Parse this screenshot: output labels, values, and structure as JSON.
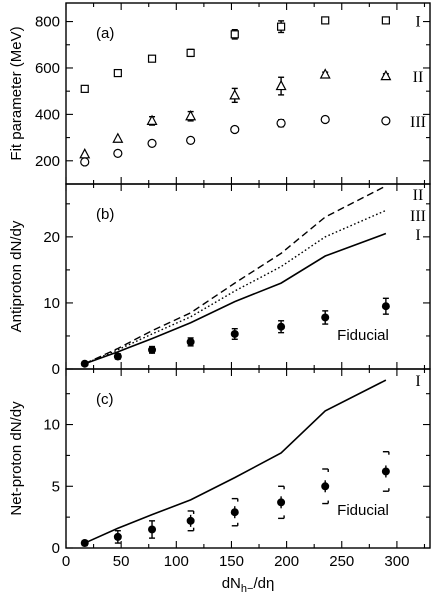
{
  "chart_data": [
    {
      "type": "scatter",
      "panel_label": "(a)",
      "ylabel": "Fit parameter (MeV)",
      "ylim": [
        100,
        880
      ],
      "xlim": [
        0,
        330
      ],
      "x_ticks": [
        0,
        50,
        100,
        150,
        200,
        250,
        300
      ],
      "y_ticks": [
        200,
        400,
        600,
        800
      ],
      "series": [
        {
          "name": "I",
          "marker": "square",
          "x": [
            17,
            47,
            78,
            113,
            153,
            195,
            235,
            290
          ],
          "y": [
            510,
            578,
            640,
            665,
            745,
            778,
            805,
            805
          ],
          "err": [
            0,
            8,
            12,
            15,
            20,
            25,
            8,
            8
          ]
        },
        {
          "name": "II",
          "marker": "triangle",
          "x": [
            17,
            47,
            78,
            113,
            153,
            195,
            235,
            290
          ],
          "y": [
            228,
            295,
            372,
            392,
            482,
            522,
            572,
            565
          ],
          "err": [
            0,
            0,
            18,
            20,
            30,
            38,
            10,
            10
          ]
        },
        {
          "name": "III",
          "marker": "circle",
          "x": [
            17,
            47,
            78,
            113,
            153,
            195,
            235,
            290
          ],
          "y": [
            195,
            232,
            275,
            288,
            335,
            362,
            378,
            372
          ],
          "err": [
            0,
            0,
            0,
            0,
            8,
            15,
            0,
            0
          ]
        }
      ]
    },
    {
      "type": "line",
      "panel_label": "(b)",
      "ylabel": "Antiproton dN/dy",
      "ylim": [
        0,
        28
      ],
      "xlim": [
        0,
        330
      ],
      "y_ticks": [
        0,
        10,
        20
      ],
      "annotation": "Fiducial",
      "series": [
        {
          "name": "II",
          "style": "dashed",
          "x": [
            17,
            47,
            78,
            113,
            153,
            195,
            235,
            290
          ],
          "y": [
            0.8,
            3.1,
            5.8,
            8.5,
            13.0,
            17.5,
            23.0,
            27.7
          ]
        },
        {
          "name": "III",
          "style": "dotted",
          "x": [
            17,
            47,
            78,
            113,
            153,
            195,
            235,
            290
          ],
          "y": [
            0.8,
            2.9,
            5.3,
            7.9,
            11.8,
            15.5,
            20.0,
            24.0
          ]
        },
        {
          "name": "I",
          "style": "solid",
          "x": [
            17,
            47,
            78,
            113,
            153,
            195,
            235,
            290
          ],
          "y": [
            0.8,
            2.6,
            4.6,
            7.0,
            10.2,
            13.0,
            17.1,
            20.5
          ]
        }
      ],
      "points": {
        "x": [
          17,
          47,
          78,
          113,
          153,
          195,
          235,
          290
        ],
        "y": [
          0.8,
          1.9,
          2.9,
          4.1,
          5.3,
          6.4,
          7.8,
          9.5
        ],
        "err": [
          0.3,
          0.4,
          0.5,
          0.6,
          0.8,
          0.9,
          1.0,
          1.2
        ]
      }
    },
    {
      "type": "line",
      "panel_label": "(c)",
      "ylabel": "Net-proton dN/dy",
      "xlabel": "dN",
      "xlabel_sub": "h−",
      "xlabel_tail": "/dη",
      "ylim": [
        0,
        14.5
      ],
      "xlim": [
        0,
        330
      ],
      "x_ticks": [
        0,
        50,
        100,
        150,
        200,
        250,
        300
      ],
      "y_ticks": [
        0,
        5,
        10
      ],
      "annotation": "Fiducial",
      "series": [
        {
          "name": "I",
          "style": "solid",
          "x": [
            17,
            47,
            78,
            113,
            153,
            195,
            235,
            290
          ],
          "y": [
            0.4,
            1.6,
            2.7,
            3.9,
            5.7,
            7.7,
            11.1,
            13.6
          ]
        }
      ],
      "points": {
        "x": [
          17,
          47,
          78,
          113,
          153,
          195,
          235,
          290
        ],
        "y": [
          0.4,
          0.9,
          1.5,
          2.2,
          2.9,
          3.7,
          5.0,
          6.2
        ],
        "err": [
          0.2,
          0.5,
          0.7,
          0.8,
          1.1,
          1.3,
          1.4,
          1.6
        ]
      }
    }
  ]
}
